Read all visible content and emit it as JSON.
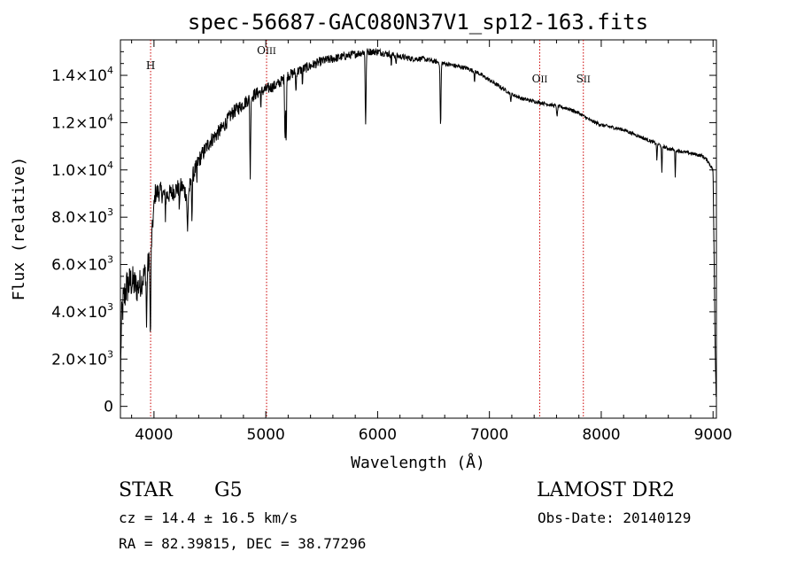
{
  "chart_data": {
    "type": "line",
    "title": "spec-56687-GAC080N37V1_sp12-163.fits",
    "xlabel": "Wavelength (Å)",
    "ylabel": "Flux (relative)",
    "xlim": [
      3700,
      9030
    ],
    "ylim": [
      -500,
      15500
    ],
    "x_ticks": [
      {
        "value": 4000,
        "label": "4000"
      },
      {
        "value": 5000,
        "label": "5000"
      },
      {
        "value": 6000,
        "label": "6000"
      },
      {
        "value": 7000,
        "label": "7000"
      },
      {
        "value": 8000,
        "label": "8000"
      },
      {
        "value": 9000,
        "label": "9000"
      }
    ],
    "y_ticks": [
      {
        "value": 0,
        "mant": "0",
        "exp": ""
      },
      {
        "value": 2000,
        "mant": "2.0×10",
        "exp": "3"
      },
      {
        "value": 4000,
        "mant": "4.0×10",
        "exp": "3"
      },
      {
        "value": 6000,
        "mant": "6.0×10",
        "exp": "3"
      },
      {
        "value": 8000,
        "mant": "8.0×10",
        "exp": "3"
      },
      {
        "value": 10000,
        "mant": "1.0×10",
        "exp": "4"
      },
      {
        "value": 12000,
        "mant": "1.2×10",
        "exp": "4"
      },
      {
        "value": 14000,
        "mant": "1.4×10",
        "exp": "4"
      }
    ],
    "line_color": "#000000",
    "marker_color": "#cc0000",
    "spectral_lines": [
      {
        "wavelength": 3970,
        "label": "H",
        "roman": ""
      },
      {
        "wavelength": 5007,
        "label": "O",
        "roman": "III"
      },
      {
        "wavelength": 7450,
        "label": "O",
        "roman": "II"
      },
      {
        "wavelength": 7840,
        "label": "S",
        "roman": "II"
      }
    ],
    "continuum": [
      [
        3700,
        0
      ],
      [
        3705,
        3000
      ],
      [
        3720,
        4200
      ],
      [
        3750,
        5000
      ],
      [
        3800,
        5300
      ],
      [
        3850,
        5000
      ],
      [
        3900,
        5400
      ],
      [
        3940,
        5900
      ],
      [
        3970,
        6300
      ],
      [
        3990,
        7800
      ],
      [
        4010,
        9000
      ],
      [
        4050,
        9100
      ],
      [
        4100,
        8900
      ],
      [
        4150,
        9000
      ],
      [
        4200,
        9200
      ],
      [
        4250,
        9300
      ],
      [
        4300,
        8900
      ],
      [
        4350,
        9800
      ],
      [
        4400,
        10400
      ],
      [
        4500,
        11200
      ],
      [
        4600,
        11700
      ],
      [
        4700,
        12400
      ],
      [
        4800,
        12800
      ],
      [
        4900,
        13200
      ],
      [
        5000,
        13400
      ],
      [
        5100,
        13600
      ],
      [
        5200,
        14000
      ],
      [
        5300,
        14200
      ],
      [
        5400,
        14400
      ],
      [
        5500,
        14600
      ],
      [
        5600,
        14700
      ],
      [
        5700,
        14800
      ],
      [
        5800,
        14900
      ],
      [
        5900,
        15000
      ],
      [
        6000,
        15000
      ],
      [
        6100,
        14900
      ],
      [
        6200,
        14800
      ],
      [
        6300,
        14700
      ],
      [
        6400,
        14700
      ],
      [
        6500,
        14600
      ],
      [
        6600,
        14500
      ],
      [
        6700,
        14400
      ],
      [
        6800,
        14300
      ],
      [
        6900,
        14100
      ],
      [
        7000,
        13800
      ],
      [
        7100,
        13500
      ],
      [
        7200,
        13200
      ],
      [
        7300,
        13000
      ],
      [
        7400,
        12900
      ],
      [
        7500,
        12800
      ],
      [
        7600,
        12700
      ],
      [
        7700,
        12600
      ],
      [
        7800,
        12400
      ],
      [
        7900,
        12100
      ],
      [
        8000,
        11900
      ],
      [
        8100,
        11800
      ],
      [
        8200,
        11700
      ],
      [
        8300,
        11500
      ],
      [
        8400,
        11300
      ],
      [
        8500,
        11100
      ],
      [
        8600,
        10900
      ],
      [
        8700,
        10800
      ],
      [
        8800,
        10700
      ],
      [
        8900,
        10600
      ],
      [
        8950,
        10400
      ],
      [
        9000,
        10000
      ],
      [
        9010,
        6000
      ],
      [
        9020,
        2000
      ],
      [
        9030,
        0
      ]
    ],
    "absorption": [
      {
        "x": 3934,
        "depth": 2500,
        "w": 12
      },
      {
        "x": 3968,
        "depth": 3400,
        "w": 12
      },
      {
        "x": 4102,
        "depth": 800,
        "w": 10
      },
      {
        "x": 4227,
        "depth": 1200,
        "w": 8
      },
      {
        "x": 4300,
        "depth": 1600,
        "w": 14
      },
      {
        "x": 4340,
        "depth": 1500,
        "w": 12
      },
      {
        "x": 4383,
        "depth": 800,
        "w": 8
      },
      {
        "x": 4861,
        "depth": 3300,
        "w": 12
      },
      {
        "x": 4957,
        "depth": 700,
        "w": 8
      },
      {
        "x": 5172,
        "depth": 2600,
        "w": 12
      },
      {
        "x": 5183,
        "depth": 2800,
        "w": 10
      },
      {
        "x": 5270,
        "depth": 900,
        "w": 10
      },
      {
        "x": 5328,
        "depth": 700,
        "w": 8
      },
      {
        "x": 5893,
        "depth": 3000,
        "w": 14
      },
      {
        "x": 6122,
        "depth": 500,
        "w": 8
      },
      {
        "x": 6165,
        "depth": 500,
        "w": 8
      },
      {
        "x": 6563,
        "depth": 2700,
        "w": 14
      },
      {
        "x": 6867,
        "depth": 400,
        "w": 10
      },
      {
        "x": 7190,
        "depth": 300,
        "w": 14
      },
      {
        "x": 7605,
        "depth": 500,
        "w": 12
      },
      {
        "x": 8498,
        "depth": 700,
        "w": 10
      },
      {
        "x": 8542,
        "depth": 1200,
        "w": 10
      },
      {
        "x": 8662,
        "depth": 1100,
        "w": 10
      }
    ],
    "noise_amplitude": [
      [
        3700,
        1800
      ],
      [
        4000,
        900
      ],
      [
        4400,
        700
      ],
      [
        5000,
        500
      ],
      [
        5500,
        400
      ],
      [
        6500,
        200
      ],
      [
        7500,
        150
      ],
      [
        9000,
        150
      ]
    ]
  },
  "footer": {
    "class_label": "STAR",
    "subclass": "G5",
    "survey": "LAMOST DR2",
    "cz": "cz = 14.4 ± 16.5 km/s",
    "obs_date": "Obs-Date: 20140129",
    "radec": "RA =  82.39815, DEC =  38.77296"
  }
}
